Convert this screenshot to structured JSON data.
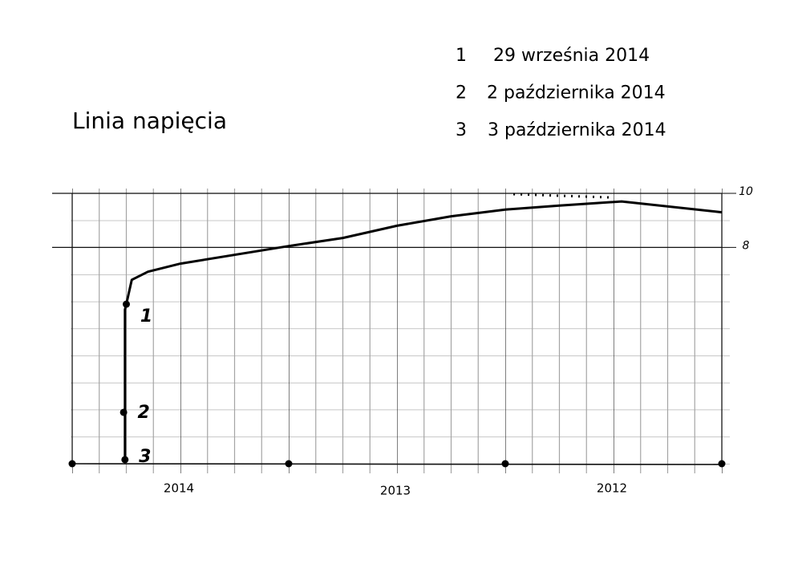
{
  "chart_data": {
    "type": "line",
    "title": "Linia napięcia",
    "notes": [
      {
        "number": "1",
        "date": "29 września 2014"
      },
      {
        "number": "2",
        "date": "2 października 2014"
      },
      {
        "number": "3",
        "date": "3 października 2014"
      }
    ],
    "x": [
      1.95,
      1.95,
      1.95,
      2.0,
      2.2,
      2.8,
      4,
      8,
      10,
      12,
      14,
      16,
      18,
      20.3,
      24
    ],
    "y": [
      0.15,
      1.9,
      5.7,
      5.9,
      6.8,
      7.1,
      7.4,
      8.05,
      8.35,
      8.8,
      9.15,
      9.4,
      9.55,
      9.7,
      9.3
    ],
    "color": "#000000",
    "dotted": {
      "x": [
        16.3,
        19.9
      ],
      "y": [
        9.97,
        9.85
      ]
    },
    "numbered_points": [
      {
        "label": "1",
        "x": 2.0,
        "y": 5.9
      },
      {
        "label": "2",
        "x": 1.9,
        "y": 1.9
      },
      {
        "label": "3",
        "x": 1.95,
        "y": 0.15
      }
    ],
    "base_points": {
      "x": [
        0,
        8,
        16,
        24
      ],
      "y": [
        0,
        0,
        0,
        0
      ]
    },
    "xlim": [
      0,
      24
    ],
    "ylim": [
      0,
      10
    ],
    "xticks": [
      {
        "value": 4,
        "label": "2014"
      },
      {
        "value": 12,
        "label": "2013"
      },
      {
        "value": 20,
        "label": "2012"
      }
    ],
    "yticks": [
      8,
      10
    ],
    "grid": true
  }
}
